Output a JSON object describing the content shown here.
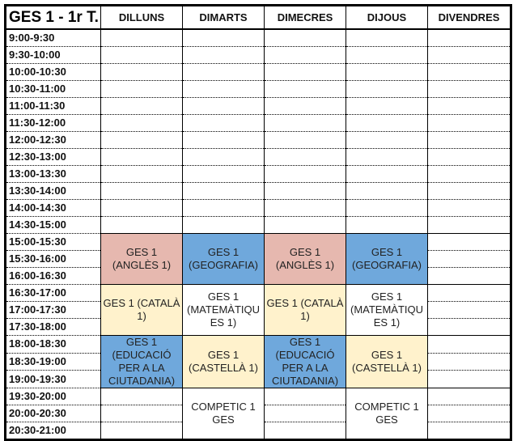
{
  "title": "GES 1 - 1r T.",
  "days": [
    "DILLUNS",
    "DIMARTS",
    "DIMECRES",
    "DIJOUS",
    "DIVENDRES"
  ],
  "times": [
    "9:00-9:30",
    "9:30-10:00",
    "10:00-10:30",
    "10:30-11:00",
    "11:00-11:30",
    "11:30-12:00",
    "12:00-12:30",
    "12:30-13:00",
    "13:00-13:30",
    "13:30-14:00",
    "14:00-14:30",
    "14:30-15:00",
    "15:00-15:30",
    "15:30-16:00",
    "16:00-16:30",
    "16:30-17:00",
    "17:00-17:30",
    "17:30-18:00",
    "18:00-18:30",
    "18:30-19:00",
    "19:00-19:30",
    "19:30-20:00",
    "20:00-20:30",
    "20:30-21:00"
  ],
  "colors": {
    "pink": "#e6b8af",
    "blue": "#6fa8dc",
    "yellow": "#fff2cc",
    "white": "#ffffff"
  },
  "schedule": [
    [
      {
        "start": 12,
        "span": 3,
        "text": "GES 1 (ANGLÈS 1)",
        "color": "pink"
      },
      {
        "start": 15,
        "span": 3,
        "text": "GES 1 (CATALÀ 1)",
        "color": "yellow"
      },
      {
        "start": 18,
        "span": 3,
        "text": "GES 1 (EDUCACIÓ PER A LA CIUTADANIA)",
        "color": "blue"
      }
    ],
    [
      {
        "start": 12,
        "span": 3,
        "text": "GES 1 (GEOGRAFIA)",
        "color": "blue"
      },
      {
        "start": 15,
        "span": 3,
        "text": "GES 1 (MATEMÀTIQUES 1)",
        "color": "white"
      },
      {
        "start": 18,
        "span": 3,
        "text": "GES 1 (CASTELLÀ 1)",
        "color": "yellow"
      },
      {
        "start": 21,
        "span": 3,
        "text": "COMPETIC 1 GES",
        "color": "white"
      }
    ],
    [
      {
        "start": 12,
        "span": 3,
        "text": "GES 1 (ANGLÈS 1)",
        "color": "pink"
      },
      {
        "start": 15,
        "span": 3,
        "text": "GES 1 (CATALÀ 1)",
        "color": "yellow"
      },
      {
        "start": 18,
        "span": 3,
        "text": "GES 1 (EDUCACIÓ PER A LA CIUTADANIA)",
        "color": "blue"
      }
    ],
    [
      {
        "start": 12,
        "span": 3,
        "text": "GES 1 (GEOGRAFIA)",
        "color": "blue"
      },
      {
        "start": 15,
        "span": 3,
        "text": "GES 1 (MATEMÀTIQUES 1)",
        "color": "white"
      },
      {
        "start": 18,
        "span": 3,
        "text": "GES 1 (CASTELLÀ 1)",
        "color": "yellow"
      },
      {
        "start": 21,
        "span": 3,
        "text": "COMPETIC 1 GES",
        "color": "white"
      }
    ],
    []
  ]
}
